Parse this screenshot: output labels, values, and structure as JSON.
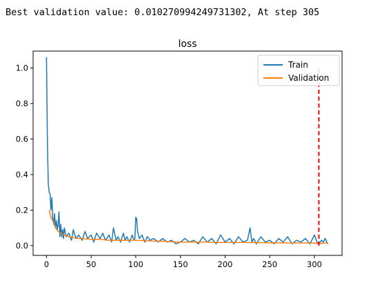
{
  "output_text": "Best validation value: 0.010270994249731302, At step 305",
  "chart_data": {
    "type": "line",
    "title": "loss",
    "xlabel": "",
    "ylabel": "",
    "xlim": [
      -15,
      331
    ],
    "ylim": [
      -0.055,
      1.095
    ],
    "x_ticks": [
      0,
      50,
      100,
      150,
      200,
      250,
      300
    ],
    "y_ticks": [
      0.0,
      0.2,
      0.4,
      0.6,
      0.8,
      1.0
    ],
    "x_tick_labels": [
      "0",
      "50",
      "100",
      "150",
      "200",
      "250",
      "300"
    ],
    "y_tick_labels": [
      "0.0",
      "0.2",
      "0.4",
      "0.6",
      "0.8",
      "1.0"
    ],
    "legend_position": "top-right",
    "series": [
      {
        "name": "Train",
        "color": "#1f77b4",
        "x": [
          0,
          1,
          2,
          3,
          4,
          5,
          6,
          7,
          8,
          9,
          10,
          11,
          12,
          13,
          14,
          15,
          16,
          17,
          18,
          19,
          20,
          22,
          25,
          28,
          30,
          33,
          36,
          40,
          43,
          46,
          50,
          53,
          56,
          60,
          63,
          66,
          70,
          73,
          75,
          78,
          80,
          83,
          86,
          88,
          90,
          93,
          96,
          98,
          99,
          100,
          101,
          102,
          104,
          107,
          110,
          113,
          116,
          120,
          125,
          130,
          135,
          140,
          145,
          150,
          155,
          160,
          165,
          170,
          175,
          180,
          185,
          190,
          195,
          200,
          205,
          210,
          215,
          220,
          225,
          228,
          230,
          232,
          235,
          240,
          245,
          250,
          255,
          260,
          265,
          270,
          275,
          280,
          285,
          290,
          295,
          300,
          303,
          305,
          308,
          310,
          312,
          315
        ],
        "y": [
          1.06,
          0.6,
          0.35,
          0.3,
          0.29,
          0.2,
          0.27,
          0.15,
          0.12,
          0.18,
          0.1,
          0.14,
          0.09,
          0.12,
          0.19,
          0.05,
          0.12,
          0.05,
          0.09,
          0.04,
          0.1,
          0.05,
          0.07,
          0.03,
          0.09,
          0.04,
          0.06,
          0.03,
          0.08,
          0.04,
          0.06,
          0.02,
          0.07,
          0.04,
          0.07,
          0.03,
          0.06,
          0.02,
          0.1,
          0.03,
          0.05,
          0.02,
          0.07,
          0.03,
          0.05,
          0.02,
          0.06,
          0.03,
          0.04,
          0.16,
          0.15,
          0.08,
          0.04,
          0.06,
          0.02,
          0.05,
          0.03,
          0.04,
          0.02,
          0.04,
          0.02,
          0.03,
          0.01,
          0.02,
          0.04,
          0.02,
          0.03,
          0.01,
          0.05,
          0.02,
          0.04,
          0.01,
          0.06,
          0.02,
          0.04,
          0.01,
          0.05,
          0.02,
          0.03,
          0.1,
          0.02,
          0.04,
          0.01,
          0.05,
          0.02,
          0.03,
          0.01,
          0.04,
          0.02,
          0.05,
          0.01,
          0.03,
          0.02,
          0.04,
          0.01,
          0.06,
          0.02,
          0.01,
          0.03,
          0.02,
          0.04,
          0.01
        ]
      },
      {
        "name": "Validation",
        "color": "#ff7f0e",
        "x": [
          3,
          5,
          8,
          10,
          13,
          16,
          20,
          25,
          30,
          35,
          40,
          50,
          60,
          70,
          80,
          90,
          100,
          110,
          120,
          130,
          140,
          150,
          160,
          170,
          180,
          190,
          200,
          210,
          220,
          230,
          240,
          250,
          260,
          270,
          280,
          290,
          300,
          305,
          310,
          315
        ],
        "y": [
          0.2,
          0.16,
          0.13,
          0.1,
          0.08,
          0.07,
          0.06,
          0.05,
          0.045,
          0.04,
          0.04,
          0.035,
          0.035,
          0.03,
          0.03,
          0.03,
          0.03,
          0.028,
          0.025,
          0.025,
          0.022,
          0.02,
          0.02,
          0.02,
          0.02,
          0.018,
          0.018,
          0.018,
          0.018,
          0.017,
          0.017,
          0.016,
          0.016,
          0.015,
          0.015,
          0.015,
          0.014,
          0.01027,
          0.014,
          0.016
        ]
      }
    ],
    "marker_line": {
      "x": 305,
      "y0": 0.0,
      "y1": 1.0,
      "color": "#ff0000",
      "style": "dashed"
    }
  }
}
